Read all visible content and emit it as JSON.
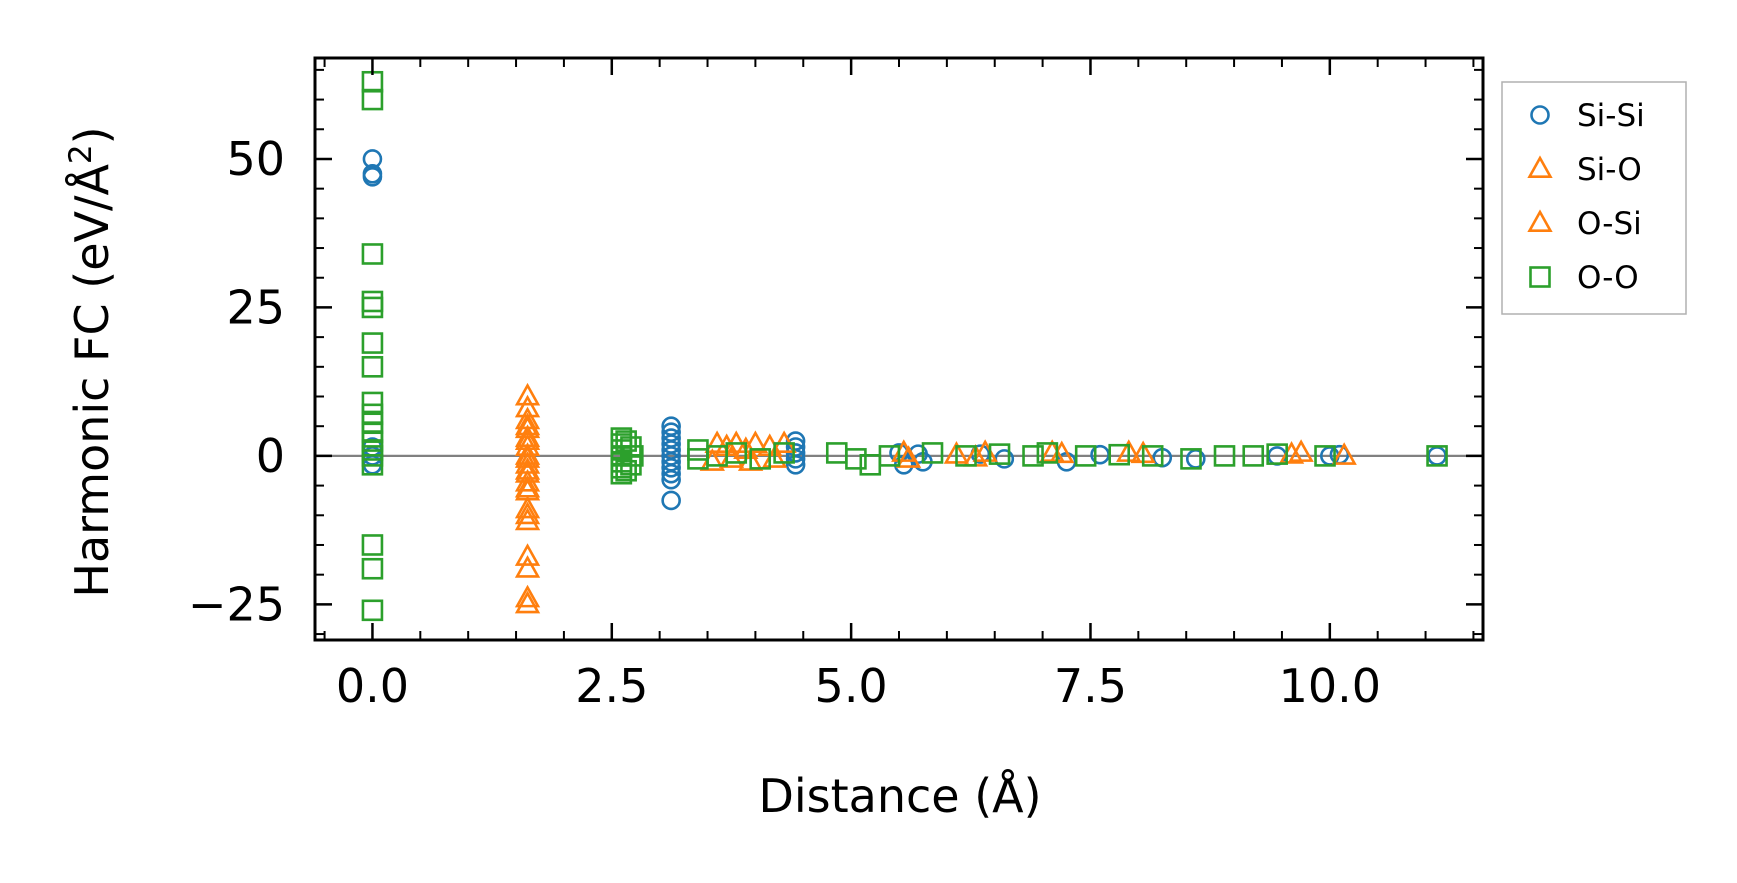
{
  "chart_data": {
    "type": "scatter",
    "title": "",
    "xlabel": "Distance (Å)",
    "ylabel_main": "Harmonic FC (eV/Å",
    "ylabel_sup": "2",
    "ylabel_close": ")",
    "xlim": [
      -0.6,
      11.6
    ],
    "ylim": [
      -31,
      67
    ],
    "xticks": [
      0.0,
      2.5,
      5.0,
      7.5,
      10.0
    ],
    "xtick_labels": [
      "0.0",
      "2.5",
      "5.0",
      "7.5",
      "10.0"
    ],
    "yticks": [
      -25,
      0,
      25,
      50
    ],
    "ytick_labels": [
      "−25",
      "0",
      "25",
      "50"
    ],
    "grid": false,
    "zero_line": 0,
    "legend_position": "outside-right-top",
    "colors": {
      "Si-Si": "#1f77b4",
      "Si-O": "#ff7f0e",
      "O-Si": "#ff7f0e",
      "O-O": "#2ca02c",
      "zero_line": "#808080"
    },
    "series": [
      {
        "name": "Si-Si",
        "marker": "circle",
        "points": [
          [
            0,
            50
          ],
          [
            0,
            47
          ],
          [
            0,
            47.5
          ],
          [
            0,
            1.5
          ],
          [
            0,
            0
          ],
          [
            0,
            -1.5
          ],
          [
            3.12,
            5
          ],
          [
            3.12,
            4
          ],
          [
            3.12,
            3
          ],
          [
            3.12,
            2
          ],
          [
            3.12,
            1
          ],
          [
            3.12,
            0
          ],
          [
            3.12,
            -1
          ],
          [
            3.12,
            -2
          ],
          [
            3.12,
            -3
          ],
          [
            3.12,
            -4
          ],
          [
            3.12,
            -7.5
          ],
          [
            4.42,
            2.5
          ],
          [
            4.42,
            1.5
          ],
          [
            4.42,
            0.5
          ],
          [
            4.42,
            -0.5
          ],
          [
            4.42,
            -1.5
          ],
          [
            5.5,
            0.5
          ],
          [
            5.55,
            -1.5
          ],
          [
            5.7,
            0.3
          ],
          [
            5.75,
            -1
          ],
          [
            6.35,
            0.3
          ],
          [
            6.6,
            -0.5
          ],
          [
            7.25,
            -1
          ],
          [
            7.6,
            0.2
          ],
          [
            8.25,
            -0.3
          ],
          [
            8.6,
            -0.5
          ],
          [
            9.45,
            0
          ],
          [
            10.0,
            0
          ],
          [
            10.1,
            0.2
          ],
          [
            11.12,
            0
          ]
        ]
      },
      {
        "name": "Si-O",
        "marker": "triangle",
        "points": [
          [
            1.62,
            10
          ],
          [
            1.62,
            8
          ],
          [
            1.62,
            6
          ],
          [
            1.62,
            4.5
          ],
          [
            1.62,
            3
          ],
          [
            1.62,
            1.5
          ],
          [
            1.62,
            0
          ],
          [
            1.62,
            -1.5
          ],
          [
            1.62,
            -3
          ],
          [
            1.62,
            -4.5
          ],
          [
            1.62,
            -6
          ],
          [
            1.62,
            -9
          ],
          [
            1.62,
            -11
          ],
          [
            1.62,
            -17
          ],
          [
            1.62,
            -19
          ],
          [
            1.62,
            -24
          ],
          [
            1.62,
            -25
          ],
          [
            3.6,
            2
          ],
          [
            3.7,
            1.5
          ],
          [
            3.8,
            2
          ],
          [
            3.9,
            1
          ],
          [
            4.0,
            2
          ],
          [
            4.15,
            1.5
          ],
          [
            4.3,
            2
          ],
          [
            5.55,
            0.5
          ],
          [
            6.1,
            0.2
          ],
          [
            6.4,
            0.5
          ],
          [
            7.1,
            0.5
          ],
          [
            7.9,
            0.5
          ],
          [
            9.7,
            0.5
          ]
        ]
      },
      {
        "name": "O-Si",
        "marker": "triangle",
        "points": [
          [
            1.62,
            5
          ],
          [
            1.62,
            2.5
          ],
          [
            1.62,
            -0.5
          ],
          [
            1.62,
            -2.5
          ],
          [
            1.62,
            -5.5
          ],
          [
            1.62,
            -10
          ],
          [
            3.55,
            -1
          ],
          [
            3.75,
            -0.5
          ],
          [
            3.95,
            -1
          ],
          [
            4.2,
            -0.5
          ],
          [
            5.6,
            -0.5
          ],
          [
            6.3,
            -0.3
          ],
          [
            7.2,
            0.3
          ],
          [
            8.05,
            0.3
          ],
          [
            9.6,
            0.2
          ],
          [
            10.15,
            0
          ]
        ]
      },
      {
        "name": "O-O",
        "marker": "square",
        "points": [
          [
            0,
            63
          ],
          [
            0,
            60
          ],
          [
            0,
            34
          ],
          [
            0,
            26
          ],
          [
            0,
            25
          ],
          [
            0,
            19
          ],
          [
            0,
            15
          ],
          [
            0,
            9
          ],
          [
            0,
            7
          ],
          [
            0,
            5.5
          ],
          [
            0,
            4
          ],
          [
            0,
            2.5
          ],
          [
            0,
            1
          ],
          [
            0,
            0
          ],
          [
            0,
            -1.5
          ],
          [
            0,
            -15
          ],
          [
            0,
            -19
          ],
          [
            0,
            -26
          ],
          [
            2.6,
            3
          ],
          [
            2.6,
            2
          ],
          [
            2.6,
            1
          ],
          [
            2.6,
            0
          ],
          [
            2.6,
            -1
          ],
          [
            2.6,
            -2
          ],
          [
            2.6,
            -3
          ],
          [
            2.65,
            2.5
          ],
          [
            2.65,
            -2.5
          ],
          [
            2.7,
            1.5
          ],
          [
            2.7,
            -1.5
          ],
          [
            2.72,
            0
          ],
          [
            3.4,
            1
          ],
          [
            3.4,
            -0.5
          ],
          [
            3.6,
            0
          ],
          [
            3.8,
            0.5
          ],
          [
            4.05,
            -0.5
          ],
          [
            4.3,
            0.5
          ],
          [
            4.85,
            0.5
          ],
          [
            5.05,
            -0.5
          ],
          [
            5.2,
            -1.5
          ],
          [
            5.4,
            0
          ],
          [
            5.85,
            0.5
          ],
          [
            6.2,
            0
          ],
          [
            6.55,
            0.3
          ],
          [
            6.9,
            0
          ],
          [
            7.05,
            0.5
          ],
          [
            7.45,
            0
          ],
          [
            7.8,
            0.2
          ],
          [
            8.15,
            0
          ],
          [
            8.55,
            -0.5
          ],
          [
            8.9,
            0
          ],
          [
            9.2,
            0
          ],
          [
            9.45,
            0.3
          ],
          [
            9.95,
            0
          ],
          [
            11.12,
            0
          ]
        ]
      }
    ]
  }
}
